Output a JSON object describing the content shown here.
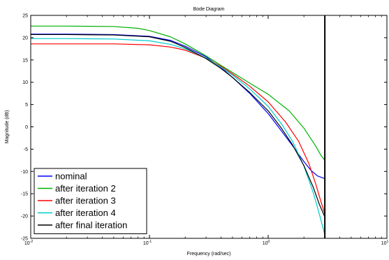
{
  "chart_data": {
    "type": "line",
    "title": "Bode Diagram",
    "xlabel": "Frequency  (rad/sec)",
    "ylabel": "Magnitude (dB)",
    "xscale": "log",
    "xlim": [
      0.01,
      10
    ],
    "ylim": [
      -25,
      25
    ],
    "xticks": [
      {
        "value": 0.01,
        "base": "10",
        "exp": "-2"
      },
      {
        "value": 0.1,
        "base": "10",
        "exp": "-1"
      },
      {
        "value": 1,
        "base": "10",
        "exp": "0"
      },
      {
        "value": 10,
        "base": "10",
        "exp": "1"
      }
    ],
    "yticks": [
      25,
      20,
      15,
      10,
      5,
      0,
      -5,
      -10,
      -15,
      -20,
      -25
    ],
    "grid": false,
    "legend_position": "bottom-left",
    "vline": {
      "x": 3.0,
      "color": "#000000"
    },
    "series": [
      {
        "name": "nominal",
        "color": "#0000ff",
        "points": [
          [
            0.01,
            20.8
          ],
          [
            0.02,
            20.8
          ],
          [
            0.05,
            20.7
          ],
          [
            0.1,
            20.3
          ],
          [
            0.15,
            19.4
          ],
          [
            0.2,
            18.1
          ],
          [
            0.3,
            15.7
          ],
          [
            0.4,
            13.3
          ],
          [
            0.5,
            11.1
          ],
          [
            0.7,
            7.5
          ],
          [
            1.0,
            3.0
          ],
          [
            1.3,
            -1.0
          ],
          [
            1.6,
            -4.2
          ],
          [
            2.0,
            -7.8
          ],
          [
            2.3,
            -9.8
          ],
          [
            2.6,
            -11.0
          ],
          [
            3.0,
            -11.6
          ]
        ]
      },
      {
        "name": "after iteration 2",
        "color": "#00b000",
        "points": [
          [
            0.01,
            22.6
          ],
          [
            0.02,
            22.6
          ],
          [
            0.05,
            22.5
          ],
          [
            0.08,
            22.1
          ],
          [
            0.1,
            21.6
          ],
          [
            0.15,
            20.2
          ],
          [
            0.2,
            18.6
          ],
          [
            0.3,
            15.9
          ],
          [
            0.4,
            13.8
          ],
          [
            0.5,
            12.2
          ],
          [
            0.7,
            9.8
          ],
          [
            1.0,
            7.3
          ],
          [
            1.5,
            3.6
          ],
          [
            2.0,
            -0.3
          ],
          [
            2.5,
            -4.2
          ],
          [
            2.8,
            -6.5
          ],
          [
            3.0,
            -7.5
          ]
        ]
      },
      {
        "name": "after iteration 3",
        "color": "#ff0000",
        "points": [
          [
            0.01,
            18.6
          ],
          [
            0.02,
            18.6
          ],
          [
            0.05,
            18.6
          ],
          [
            0.1,
            18.4
          ],
          [
            0.15,
            17.9
          ],
          [
            0.2,
            17.2
          ],
          [
            0.3,
            15.4
          ],
          [
            0.4,
            13.6
          ],
          [
            0.5,
            11.9
          ],
          [
            0.7,
            9.1
          ],
          [
            1.0,
            5.6
          ],
          [
            1.4,
            1.1
          ],
          [
            1.8,
            -3.2
          ],
          [
            2.2,
            -8.2
          ],
          [
            2.5,
            -12.6
          ],
          [
            2.8,
            -17.0
          ],
          [
            3.0,
            -19.5
          ]
        ]
      },
      {
        "name": "after iteration 4",
        "color": "#00cccc",
        "points": [
          [
            0.01,
            19.8
          ],
          [
            0.02,
            19.8
          ],
          [
            0.05,
            19.7
          ],
          [
            0.1,
            19.3
          ],
          [
            0.15,
            18.5
          ],
          [
            0.2,
            17.5
          ],
          [
            0.3,
            15.4
          ],
          [
            0.4,
            13.4
          ],
          [
            0.5,
            11.6
          ],
          [
            0.7,
            8.5
          ],
          [
            1.0,
            4.6
          ],
          [
            1.3,
            0.6
          ],
          [
            1.6,
            -3.2
          ],
          [
            2.0,
            -8.8
          ],
          [
            2.4,
            -14.8
          ],
          [
            2.7,
            -19.6
          ],
          [
            3.0,
            -24.2
          ]
        ]
      },
      {
        "name": "after final iteration",
        "color": "#000000",
        "points": [
          [
            0.01,
            20.7
          ],
          [
            0.02,
            20.7
          ],
          [
            0.05,
            20.6
          ],
          [
            0.1,
            20.2
          ],
          [
            0.15,
            19.2
          ],
          [
            0.2,
            17.8
          ],
          [
            0.3,
            15.3
          ],
          [
            0.4,
            13.1
          ],
          [
            0.5,
            11.1
          ],
          [
            0.7,
            7.7
          ],
          [
            1.0,
            3.6
          ],
          [
            1.3,
            -0.4
          ],
          [
            1.6,
            -4.0
          ],
          [
            2.0,
            -8.7
          ],
          [
            2.4,
            -13.6
          ],
          [
            2.7,
            -17.4
          ],
          [
            3.0,
            -20.2
          ]
        ]
      }
    ]
  }
}
